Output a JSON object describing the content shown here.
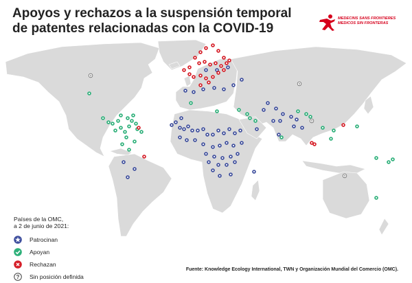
{
  "title_line1": "Apoyos y rechazos a la suspensión temporal",
  "title_line2": "de patentes relacionadas con la COVID-19",
  "logo": {
    "line1": "MEDECINS SANS FRONTIERES",
    "line2": "MEDICOS SIN FRONTERAS"
  },
  "legend": {
    "heading_line1": "Países de la OMC,",
    "heading_line2": "a 2 de junio de 2021:",
    "items": [
      {
        "label": "Patrocinan",
        "icon": "star-icon",
        "color": "#3f4f9e"
      },
      {
        "label": "Apoyan",
        "icon": "check-icon",
        "color": "#2eb07a"
      },
      {
        "label": "Rechazan",
        "icon": "cross-icon",
        "color": "#d6202a"
      },
      {
        "label": "Sin posición definida",
        "icon": "question-icon",
        "color": "#666666"
      }
    ]
  },
  "source": "Fuente: Knowledge Ecology International, TWN y Organización Mundial del Comercio (OMC).",
  "colors": {
    "land": "#dadada",
    "ocean": "#ffffff",
    "sponsor": "#3f4f9e",
    "support": "#2eb07a",
    "reject": "#d6202a",
    "undefined": "#666666"
  }
}
